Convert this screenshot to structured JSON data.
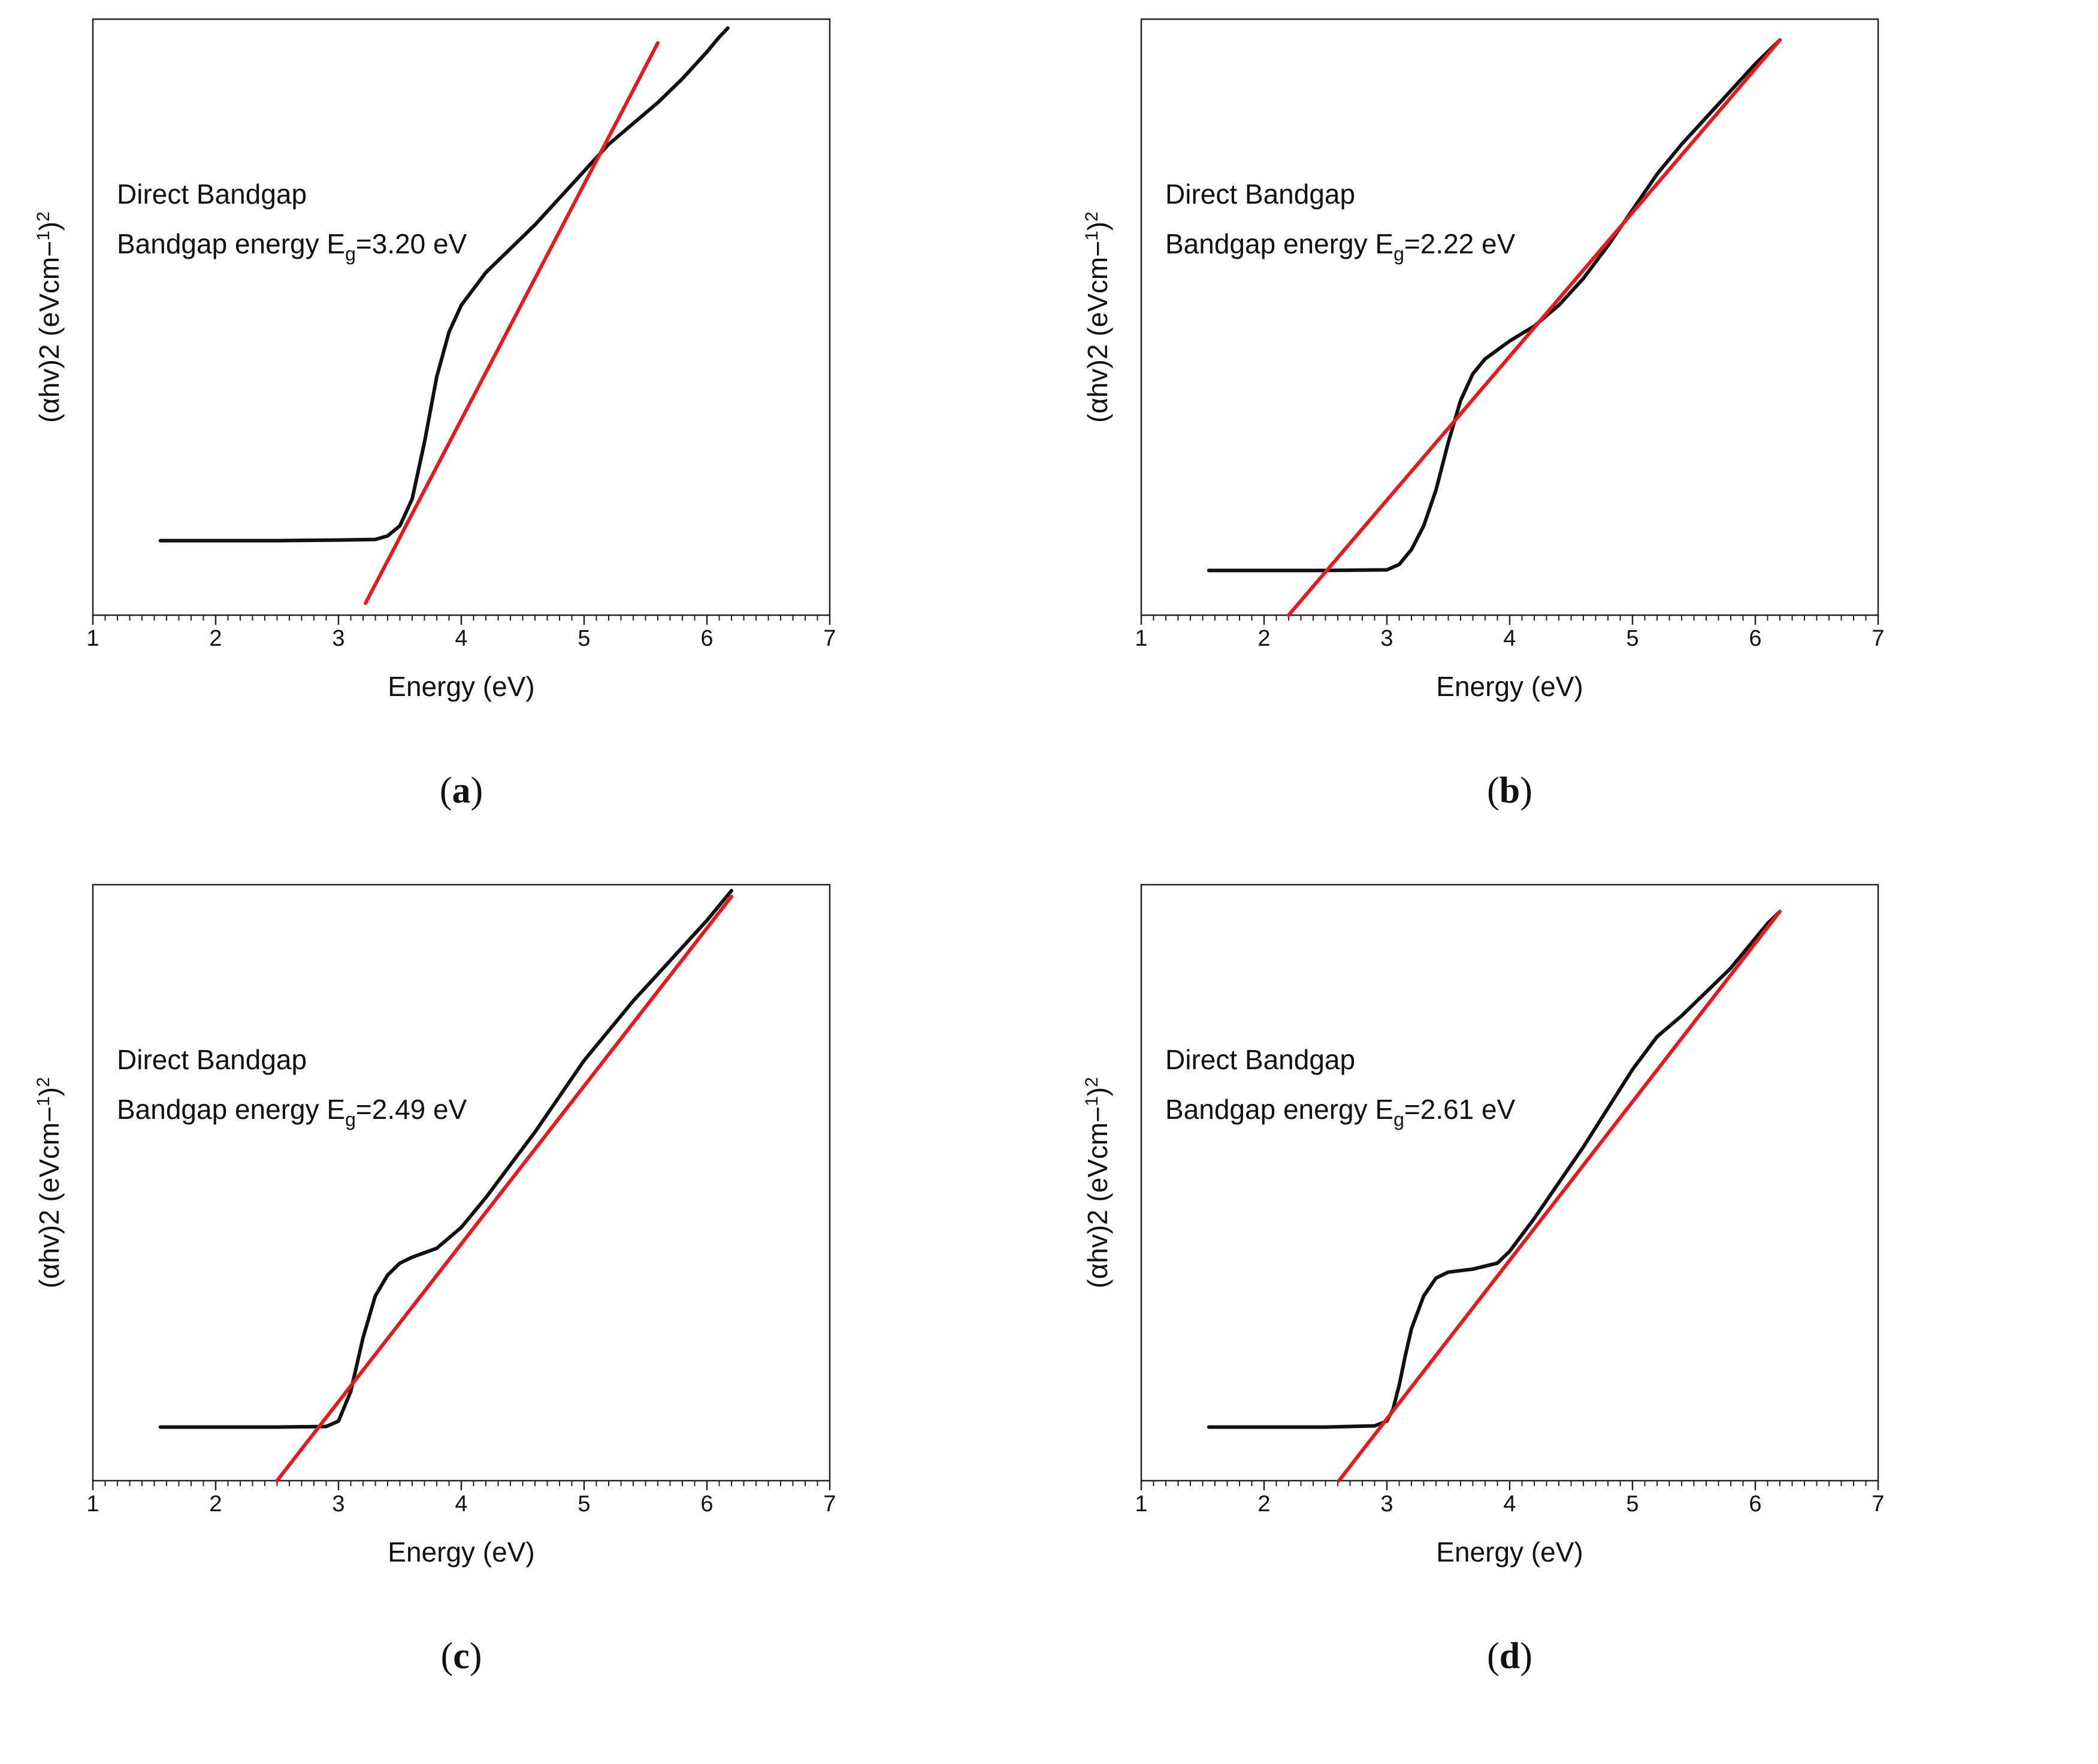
{
  "figure": {
    "background": "#ffffff",
    "curve_color": "#111111",
    "fit_color": "#e8191d"
  },
  "chart_data": [
    {
      "id": "a",
      "type": "line",
      "caption_letter": "a",
      "xlabel": "Energy (eV)",
      "ylabel_base": "(αhv)2 (eVcm",
      "ylabel_minus": "−",
      "ylabel_sup1": "1",
      "ylabel_close": ")",
      "ylabel_sup2": "2",
      "xlim": [
        1,
        7
      ],
      "ylim": [
        0,
        100
      ],
      "xticks": [
        "1",
        "2",
        "3",
        "4",
        "5",
        "6",
        "7"
      ],
      "ann_line1": "Direct Bandgap",
      "ann_line2_pre": "Bandgap energy E",
      "ann_line2_sub": "g",
      "ann_line2_post": "=3.20 eV",
      "x": [
        1.55,
        2.0,
        2.5,
        3.0,
        3.3,
        3.4,
        3.5,
        3.6,
        3.7,
        3.8,
        3.9,
        4.0,
        4.2,
        4.4,
        4.6,
        4.8,
        5.0,
        5.2,
        5.4,
        5.6,
        5.8,
        6.0,
        6.1,
        6.17
      ],
      "y": [
        12.5,
        12.5,
        12.5,
        12.6,
        12.7,
        13.3,
        15.0,
        19.5,
        29.0,
        40.0,
        47.5,
        52.0,
        57.5,
        61.5,
        65.5,
        70.0,
        74.5,
        79.0,
        82.5,
        86.0,
        90.0,
        94.5,
        97.0,
        98.5
      ],
      "fit": {
        "x1": 3.22,
        "y1": 2.0,
        "x2": 5.6,
        "y2": 96.0
      }
    },
    {
      "id": "b",
      "type": "line",
      "caption_letter": "b",
      "xlabel": "Energy (eV)",
      "ylabel_base": "(αhv)2 (eVcm",
      "ylabel_minus": "−",
      "ylabel_sup1": "1",
      "ylabel_close": ")",
      "ylabel_sup2": "2",
      "xlim": [
        1,
        7
      ],
      "ylim": [
        0,
        100
      ],
      "xticks": [
        "1",
        "2",
        "3",
        "4",
        "5",
        "6",
        "7"
      ],
      "ann_line1": "Direct Bandgap",
      "ann_line2_pre": "Bandgap energy E",
      "ann_line2_sub": "g",
      "ann_line2_post": "=2.22 eV",
      "x": [
        1.55,
        2.0,
        2.5,
        3.0,
        3.1,
        3.2,
        3.3,
        3.4,
        3.5,
        3.6,
        3.7,
        3.8,
        4.0,
        4.2,
        4.4,
        4.6,
        4.8,
        5.0,
        5.2,
        5.4,
        5.6,
        5.8,
        6.0,
        6.1,
        6.2
      ],
      "y": [
        7.5,
        7.5,
        7.5,
        7.6,
        8.5,
        11.0,
        15.0,
        21.0,
        29.0,
        36.0,
        40.5,
        43.0,
        46.0,
        48.5,
        52.0,
        56.5,
        62.0,
        68.0,
        74.0,
        79.0,
        83.5,
        88.0,
        92.5,
        94.5,
        96.5
      ],
      "fit": {
        "x1": 2.2,
        "y1": 0.0,
        "x2": 6.2,
        "y2": 96.5
      }
    },
    {
      "id": "c",
      "type": "line",
      "caption_letter": "c",
      "xlabel": "Energy (eV)",
      "ylabel_base": "(αhv)2 (eVcm",
      "ylabel_minus": "−",
      "ylabel_sup1": "1",
      "ylabel_close": ")",
      "ylabel_sup2": "2",
      "xlim": [
        1,
        7
      ],
      "ylim": [
        0,
        100
      ],
      "xticks": [
        "1",
        "2",
        "3",
        "4",
        "5",
        "6",
        "7"
      ],
      "ann_line1": "Direct Bandgap",
      "ann_line2_pre": "Bandgap energy E",
      "ann_line2_sub": "g",
      "ann_line2_post": "=2.49 eV",
      "x": [
        1.55,
        2.0,
        2.5,
        2.9,
        3.0,
        3.1,
        3.2,
        3.3,
        3.4,
        3.5,
        3.6,
        3.8,
        4.0,
        4.2,
        4.4,
        4.6,
        4.8,
        5.0,
        5.2,
        5.4,
        5.6,
        5.8,
        6.0,
        6.1,
        6.2
      ],
      "y": [
        9.0,
        9.0,
        9.0,
        9.1,
        10.0,
        15.0,
        24.0,
        31.0,
        34.5,
        36.5,
        37.5,
        39.0,
        42.5,
        47.5,
        53.0,
        58.5,
        64.5,
        70.5,
        75.5,
        80.5,
        85.0,
        89.5,
        94.0,
        96.5,
        99.0
      ],
      "fit": {
        "x1": 2.5,
        "y1": 0.0,
        "x2": 6.2,
        "y2": 98.0
      }
    },
    {
      "id": "d",
      "type": "line",
      "caption_letter": "d",
      "xlabel": "Energy (eV)",
      "ylabel_base": "(αhv)2 (eVcm",
      "ylabel_minus": "−",
      "ylabel_sup1": "1",
      "ylabel_close": ")",
      "ylabel_sup2": "2",
      "xlim": [
        1,
        7
      ],
      "ylim": [
        0,
        100
      ],
      "xticks": [
        "1",
        "2",
        "3",
        "4",
        "5",
        "6",
        "7"
      ],
      "ann_line1": "Direct Bandgap",
      "ann_line2_pre": "Bandgap energy E",
      "ann_line2_sub": "g",
      "ann_line2_post": "=2.61 eV",
      "x": [
        1.55,
        2.0,
        2.5,
        2.9,
        3.0,
        3.05,
        3.1,
        3.15,
        3.2,
        3.3,
        3.4,
        3.5,
        3.7,
        3.9,
        4.0,
        4.2,
        4.4,
        4.6,
        4.8,
        5.0,
        5.2,
        5.4,
        5.6,
        5.8,
        6.0,
        6.1,
        6.2
      ],
      "y": [
        9.0,
        9.0,
        9.0,
        9.2,
        10.0,
        12.0,
        16.0,
        21.0,
        25.5,
        31.0,
        34.0,
        35.0,
        35.5,
        36.5,
        38.5,
        44.0,
        50.0,
        56.0,
        62.5,
        69.0,
        74.5,
        78.0,
        82.0,
        86.0,
        91.0,
        93.5,
        95.5
      ],
      "fit": {
        "x1": 2.61,
        "y1": 0.0,
        "x2": 6.2,
        "y2": 95.5
      }
    }
  ]
}
